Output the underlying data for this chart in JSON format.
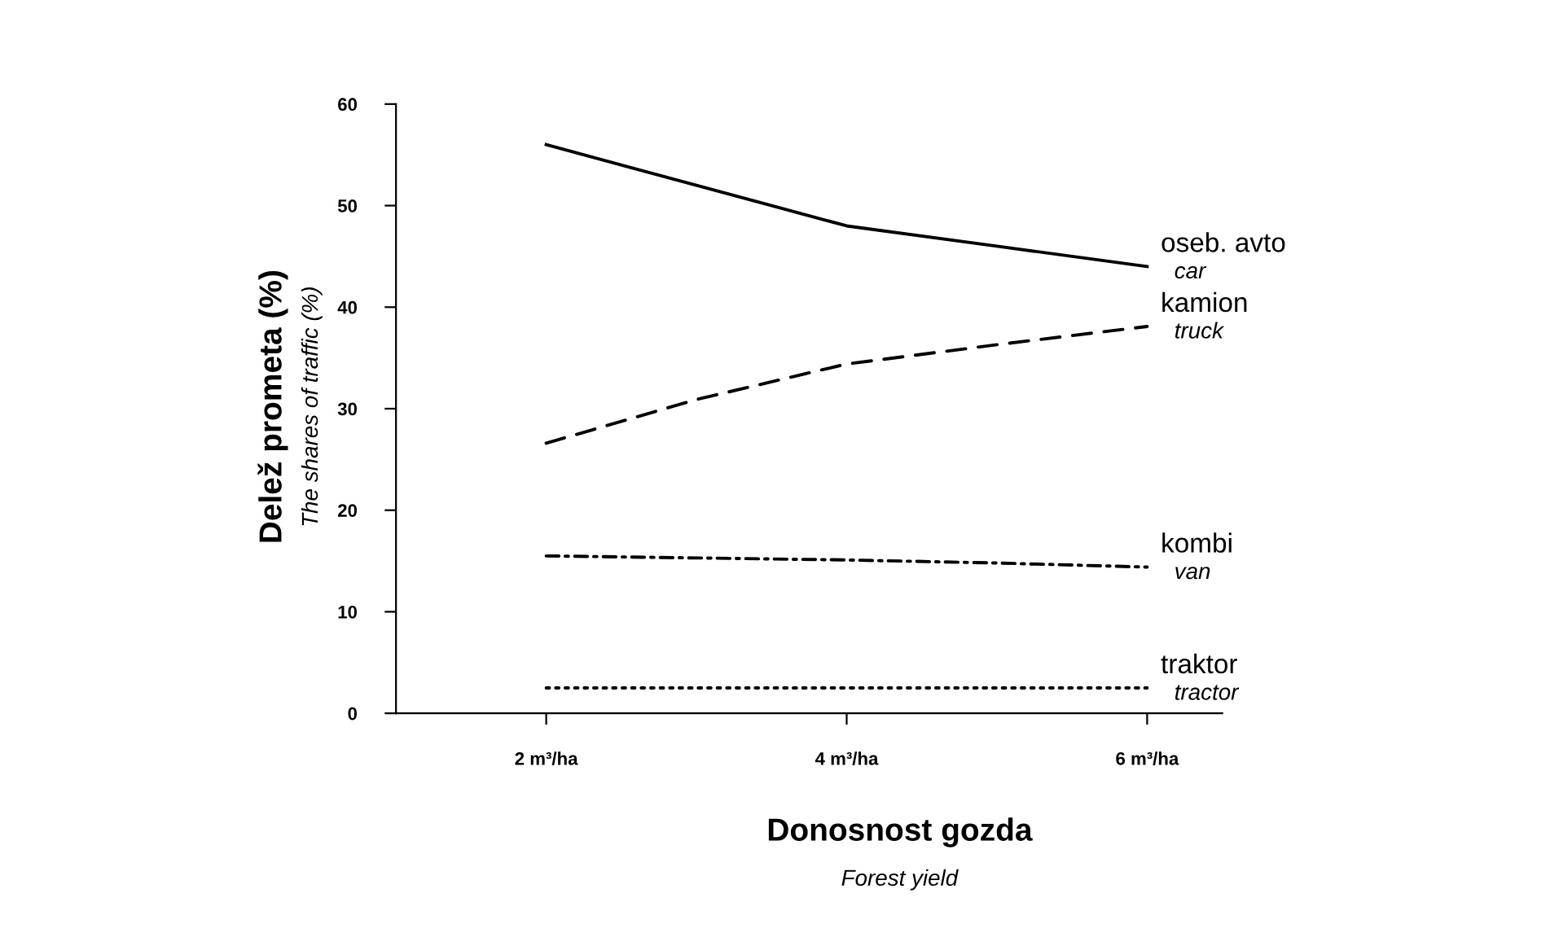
{
  "chart_data": {
    "type": "line",
    "ylabel": "Delež prometa (%)\nThe shares of traffic (%)",
    "xlabel": "Donosnost gozda\nForest yield",
    "x": [
      2,
      3,
      4,
      5,
      6
    ],
    "xlim": [
      1,
      6.5
    ],
    "xticks": [
      {
        "value": 2,
        "label": "2 m³/ha"
      },
      {
        "value": 4,
        "label": "4 m³/ha"
      },
      {
        "value": 6,
        "label": "6 m³/ha"
      }
    ],
    "ylim": [
      0,
      60
    ],
    "yticks": [
      0,
      10,
      20,
      30,
      40,
      50,
      60
    ],
    "grid": false,
    "legend": false,
    "series": [
      {
        "name": "oseb. avto\ncar",
        "color": "#000000",
        "line_style": "solid",
        "values": [
          56,
          52,
          48,
          46,
          44
        ]
      },
      {
        "name": "kamion\ntruck",
        "color": "#000000",
        "line_style": "dashed",
        "values": [
          26.6,
          30.9,
          34.4,
          36.3,
          38.1
        ]
      },
      {
        "name": "kombi\nvan",
        "color": "#000000",
        "line_style": "dashdot",
        "values": [
          15.5,
          15.3,
          15.1,
          14.8,
          14.4
        ]
      },
      {
        "name": "traktor\ntractor",
        "color": "#000000",
        "line_style": "dotted",
        "values": [
          2.5,
          2.5,
          2.5,
          2.5,
          2.5
        ]
      }
    ]
  }
}
